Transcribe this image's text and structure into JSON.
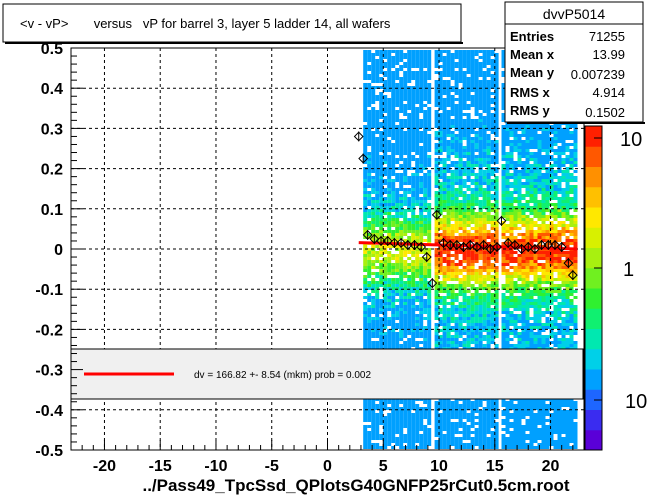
{
  "title": "<v - vP>       versus   vP for barrel 3, layer 5 ladder 14, all wafers",
  "footer": "../Pass49_TpcSsd_QPlotsG40GNFP25rCut0.5cm.root",
  "stats": {
    "name": "dvvP5014",
    "rows": [
      {
        "label": "Entries",
        "value": "71255"
      },
      {
        "label": "Mean x",
        "value": "13.99"
      },
      {
        "label": "Mean y",
        "value": "0.007239"
      },
      {
        "label": "RMS x",
        "value": "4.914"
      },
      {
        "label": "RMS y",
        "value": "0.1502"
      }
    ]
  },
  "fit_legend": "dv =  166.82 +-  8.54 (mkm) prob = 0.002",
  "colors": {
    "fit_line": "#ff0000",
    "legend_fill": "#f0f0f0",
    "profile_marker": "#000000"
  },
  "chart_data": {
    "type": "heatmap",
    "xlim": [
      -23,
      23
    ],
    "ylim": [
      -0.5,
      0.5
    ],
    "x_ticks": [
      -20,
      -15,
      -10,
      -5,
      0,
      5,
      10,
      15,
      20
    ],
    "y_ticks": [
      -0.5,
      -0.4,
      -0.3,
      -0.2,
      -0.1,
      0,
      0.1,
      0.2,
      0.3,
      0.4,
      0.5
    ],
    "x_tick_labels": [
      "-20",
      "-15",
      "-10",
      "-5",
      "0",
      "5",
      "10",
      "15",
      "20"
    ],
    "y_tick_labels": [
      "-0.5",
      "-0.4",
      "-0.3",
      "-0.2",
      "-0.1",
      "0",
      "0.1",
      "0.2",
      "0.3",
      "0.4",
      "0.5"
    ],
    "grid": true,
    "colorbar": {
      "scale": "log",
      "labels": [
        "10",
        "1",
        "10"
      ]
    },
    "occupied_x_ranges": [
      [
        3.2,
        9.0
      ],
      [
        9.6,
        15.0
      ],
      [
        15.6,
        22.2
      ]
    ],
    "profile_points": [
      {
        "x": 2.8,
        "y": 0.28
      },
      {
        "x": 3.2,
        "y": 0.225
      },
      {
        "x": 3.6,
        "y": 0.035
      },
      {
        "x": 4.2,
        "y": 0.025
      },
      {
        "x": 4.8,
        "y": 0.02
      },
      {
        "x": 5.4,
        "y": 0.02
      },
      {
        "x": 6.0,
        "y": 0.015
      },
      {
        "x": 6.6,
        "y": 0.015
      },
      {
        "x": 7.2,
        "y": 0.01
      },
      {
        "x": 7.8,
        "y": 0.01
      },
      {
        "x": 8.4,
        "y": 0.005
      },
      {
        "x": 8.9,
        "y": -0.02
      },
      {
        "x": 9.4,
        "y": -0.085
      },
      {
        "x": 9.8,
        "y": 0.085
      },
      {
        "x": 10.4,
        "y": 0.015
      },
      {
        "x": 11.0,
        "y": 0.01
      },
      {
        "x": 11.6,
        "y": 0.01
      },
      {
        "x": 12.2,
        "y": 0.005
      },
      {
        "x": 12.8,
        "y": 0.01
      },
      {
        "x": 13.4,
        "y": 0.005
      },
      {
        "x": 14.0,
        "y": 0.01
      },
      {
        "x": 14.6,
        "y": 0.0
      },
      {
        "x": 15.2,
        "y": 0.005
      },
      {
        "x": 15.6,
        "y": 0.07
      },
      {
        "x": 16.2,
        "y": 0.015
      },
      {
        "x": 16.8,
        "y": 0.01
      },
      {
        "x": 17.4,
        "y": 0.0
      },
      {
        "x": 18.0,
        "y": 0.005
      },
      {
        "x": 18.6,
        "y": 0.0
      },
      {
        "x": 19.2,
        "y": 0.01
      },
      {
        "x": 19.8,
        "y": 0.01
      },
      {
        "x": 20.4,
        "y": 0.01
      },
      {
        "x": 21.0,
        "y": 0.005
      },
      {
        "x": 21.6,
        "y": -0.035
      },
      {
        "x": 22.0,
        "y": -0.065
      }
    ],
    "fit_line": {
      "x": [
        2.8,
        22.4
      ],
      "y": [
        0.016,
        0.0
      ]
    }
  }
}
